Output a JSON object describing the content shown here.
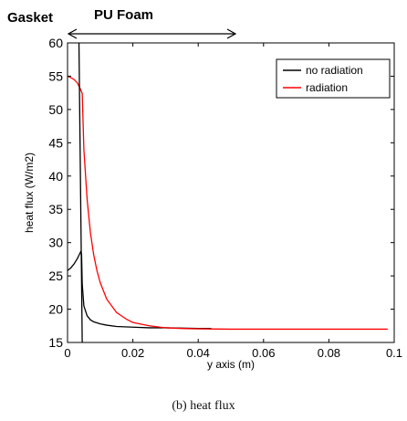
{
  "chart_data": {
    "type": "line",
    "title": "",
    "xlabel": "y axis (m)",
    "ylabel": "heat flux (W/m2)",
    "xlim": [
      0,
      0.1
    ],
    "ylim": [
      15,
      60
    ],
    "x_ticks": [
      "0",
      "0.02",
      "0.04",
      "0.06",
      "0.08",
      "0.1"
    ],
    "y_ticks": [
      "15",
      "20",
      "25",
      "30",
      "35",
      "40",
      "45",
      "50",
      "55",
      "60"
    ],
    "grid": false,
    "legend_position": "top-right",
    "series": [
      {
        "name": "no radiation",
        "color": "#000000",
        "x": [
          0,
          0.0005,
          0.001,
          0.0015,
          0.002,
          0.0025,
          0.003,
          0.0035,
          0.004,
          0.0043,
          0.0045,
          0.005,
          0.006,
          0.007,
          0.008,
          0.01,
          0.012,
          0.015,
          0.02,
          0.025,
          0.03,
          0.04,
          0.044
        ],
        "y": [
          25.8,
          26.0,
          26.2,
          26.5,
          26.8,
          27.2,
          27.6,
          28.1,
          28.6,
          28.3,
          23.8,
          20.5,
          19.0,
          18.4,
          18.1,
          17.8,
          17.6,
          17.4,
          17.3,
          17.2,
          17.2,
          17.1,
          17.1
        ]
      },
      {
        "name": "radiation",
        "color": "#ff0000",
        "x": [
          0,
          0.001,
          0.002,
          0.003,
          0.004,
          0.0045,
          0.005,
          0.006,
          0.007,
          0.008,
          0.009,
          0.01,
          0.012,
          0.015,
          0.018,
          0.02,
          0.025,
          0.03,
          0.035,
          0.04,
          0.05,
          0.06,
          0.07,
          0.08,
          0.09,
          0.098
        ],
        "y": [
          55.0,
          54.8,
          54.5,
          54.0,
          53.0,
          52.4,
          44.0,
          36.5,
          31.5,
          28.2,
          25.8,
          24.0,
          21.5,
          19.5,
          18.5,
          18.0,
          17.5,
          17.2,
          17.1,
          17.05,
          17.0,
          17.0,
          17.0,
          17.0,
          17.0,
          17.0
        ]
      }
    ],
    "extra_lines": [
      {
        "color": "#000000",
        "x": [
          0.0035,
          0.0045
        ],
        "y": [
          60,
          15
        ]
      }
    ]
  },
  "annotations": {
    "left_label": "Gasket",
    "right_label": "PU Foam"
  },
  "caption": "(b) heat flux"
}
